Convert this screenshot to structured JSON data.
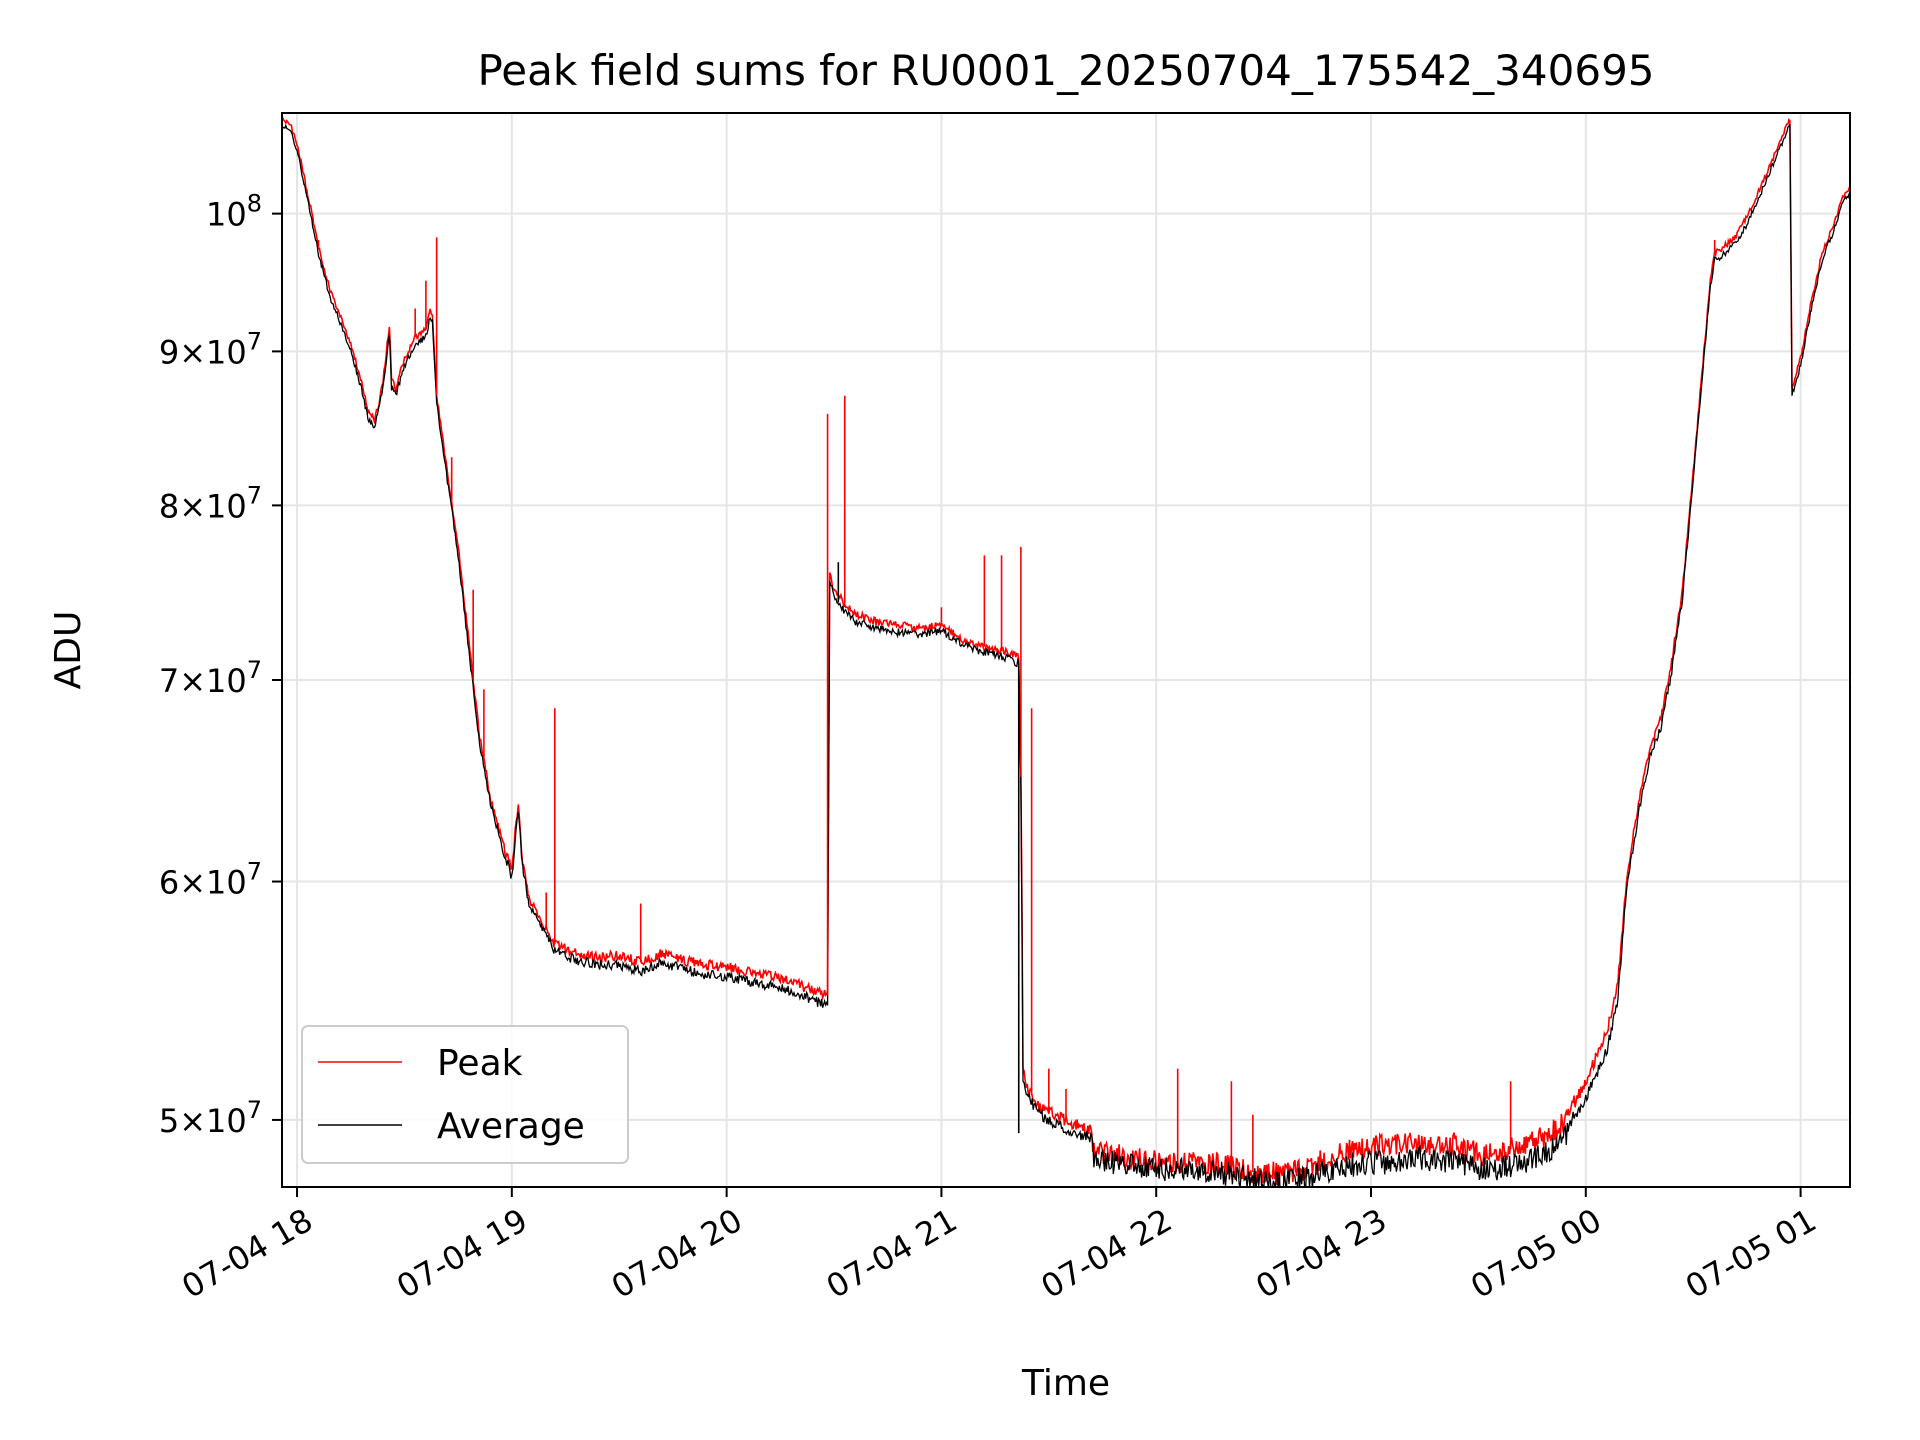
{
  "chart_data": {
    "type": "line",
    "title": "Peak field sums for RU0001_20250704_175542_340695",
    "xlabel": "Time",
    "ylabel": "ADU",
    "x_unit": "hours since 2025-07-04 00:00",
    "xlim": [
      17.93,
      25.23
    ],
    "ylim": [
      47500000,
      108000000
    ],
    "y_scale": "log",
    "grid": true,
    "legend_position": "lower left",
    "x_ticks": [
      {
        "value": 18,
        "label": "07-04 18"
      },
      {
        "value": 19,
        "label": "07-04 19"
      },
      {
        "value": 20,
        "label": "07-04 20"
      },
      {
        "value": 21,
        "label": "07-04 21"
      },
      {
        "value": 22,
        "label": "07-04 22"
      },
      {
        "value": 23,
        "label": "07-04 23"
      },
      {
        "value": 24,
        "label": "07-05 00"
      },
      {
        "value": 25,
        "label": "07-05 01"
      }
    ],
    "y_ticks": [
      {
        "value": 50000000,
        "mantissa": "5",
        "base": "10",
        "exponent": "7"
      },
      {
        "value": 60000000,
        "mantissa": "6",
        "base": "10",
        "exponent": "7"
      },
      {
        "value": 70000000,
        "mantissa": "7",
        "base": "10",
        "exponent": "7"
      },
      {
        "value": 80000000,
        "mantissa": "8",
        "base": "10",
        "exponent": "7"
      },
      {
        "value": 90000000,
        "mantissa": "9",
        "base": "10",
        "exponent": "7"
      },
      {
        "value": 100000000,
        "mantissa": "",
        "base": "10",
        "exponent": "8"
      }
    ],
    "series": [
      {
        "name": "Peak",
        "color": "#ff0000",
        "points": [
          [
            17.93,
            107.5
          ],
          [
            17.97,
            107.0
          ],
          [
            18.0,
            105.5
          ],
          [
            18.05,
            101.5
          ],
          [
            18.1,
            97.5
          ],
          [
            18.15,
            94.5
          ],
          [
            18.2,
            92.5
          ],
          [
            18.25,
            90.5
          ],
          [
            18.3,
            88.0
          ],
          [
            18.33,
            86.0
          ],
          [
            18.36,
            85.5
          ],
          [
            18.38,
            86.5
          ],
          [
            18.4,
            88.0
          ],
          [
            18.42,
            90.5
          ],
          [
            18.43,
            91.8
          ],
          [
            18.44,
            88.0
          ],
          [
            18.46,
            87.5
          ],
          [
            18.5,
            89.5
          ],
          [
            18.55,
            91.0
          ],
          [
            18.6,
            91.5
          ],
          [
            18.62,
            93.0
          ],
          [
            18.63,
            92.5
          ],
          [
            18.65,
            87.0
          ],
          [
            18.7,
            82.0
          ],
          [
            18.75,
            77.5
          ],
          [
            18.8,
            72.0
          ],
          [
            18.85,
            67.0
          ],
          [
            18.9,
            64.0
          ],
          [
            18.95,
            62.0
          ],
          [
            18.99,
            60.8
          ],
          [
            19.0,
            60.5
          ],
          [
            19.02,
            62.8
          ],
          [
            19.03,
            63.5
          ],
          [
            19.05,
            61.0
          ],
          [
            19.08,
            59.2
          ],
          [
            19.12,
            58.5
          ],
          [
            19.15,
            58.0
          ],
          [
            19.2,
            57.2
          ],
          [
            19.3,
            56.8
          ],
          [
            19.4,
            56.6
          ],
          [
            19.5,
            56.7
          ],
          [
            19.6,
            56.4
          ],
          [
            19.7,
            56.8
          ],
          [
            19.8,
            56.5
          ],
          [
            19.9,
            56.3
          ],
          [
            20.0,
            56.2
          ],
          [
            20.1,
            56.0
          ],
          [
            20.2,
            55.8
          ],
          [
            20.3,
            55.6
          ],
          [
            20.4,
            55.2
          ],
          [
            20.47,
            55.0
          ],
          [
            20.48,
            76.0
          ],
          [
            20.5,
            75.0
          ],
          [
            20.55,
            74.2
          ],
          [
            20.6,
            73.6
          ],
          [
            20.7,
            73.2
          ],
          [
            20.8,
            73.0
          ],
          [
            20.9,
            72.8
          ],
          [
            21.0,
            73.0
          ],
          [
            21.05,
            72.6
          ],
          [
            21.1,
            72.2
          ],
          [
            21.2,
            71.8
          ],
          [
            21.3,
            71.5
          ],
          [
            21.36,
            71.2
          ],
          [
            21.37,
            65.0
          ],
          [
            21.38,
            52.0
          ],
          [
            21.4,
            51.2
          ],
          [
            21.45,
            50.6
          ],
          [
            21.5,
            50.3
          ],
          [
            21.6,
            49.9
          ],
          [
            21.7,
            49.6
          ],
          [
            21.71,
            48.8
          ],
          [
            21.8,
            48.7
          ],
          [
            21.9,
            48.6
          ],
          [
            22.0,
            48.4
          ],
          [
            22.1,
            48.4
          ],
          [
            22.2,
            48.3
          ],
          [
            22.3,
            48.3
          ],
          [
            22.4,
            48.1
          ],
          [
            22.5,
            48.0
          ],
          [
            22.6,
            48.0
          ],
          [
            22.7,
            48.1
          ],
          [
            22.8,
            48.6
          ],
          [
            22.9,
            48.8
          ],
          [
            23.0,
            49.0
          ],
          [
            23.1,
            49.0
          ],
          [
            23.2,
            49.2
          ],
          [
            23.3,
            49.0
          ],
          [
            23.4,
            49.1
          ],
          [
            23.5,
            48.7
          ],
          [
            23.6,
            48.8
          ],
          [
            23.7,
            49.0
          ],
          [
            23.8,
            49.3
          ],
          [
            23.9,
            49.9
          ],
          [
            24.0,
            51.5
          ],
          [
            24.1,
            53.5
          ],
          [
            24.15,
            55.5
          ],
          [
            24.18,
            59.0
          ],
          [
            24.2,
            60.8
          ],
          [
            24.25,
            64.0
          ],
          [
            24.3,
            66.5
          ],
          [
            24.35,
            68.0
          ],
          [
            24.4,
            71.0
          ],
          [
            24.45,
            75.0
          ],
          [
            24.5,
            82.0
          ],
          [
            24.55,
            90.0
          ],
          [
            24.58,
            95.0
          ],
          [
            24.6,
            97.0
          ],
          [
            24.65,
            97.6
          ],
          [
            24.7,
            98.3
          ],
          [
            24.75,
            99.8
          ],
          [
            24.8,
            101.5
          ],
          [
            24.85,
            103.5
          ],
          [
            24.9,
            105.5
          ],
          [
            24.95,
            107.5
          ],
          [
            24.96,
            87.5
          ],
          [
            25.0,
            89.5
          ],
          [
            25.05,
            93.5
          ],
          [
            25.1,
            97.0
          ],
          [
            25.15,
            99.0
          ],
          [
            25.2,
            101.5
          ],
          [
            25.23,
            102.0
          ]
        ]
      },
      {
        "name": "Average",
        "color": "#000000",
        "points": [
          [
            17.93,
            107.0
          ],
          [
            17.97,
            106.5
          ],
          [
            18.0,
            105.0
          ],
          [
            18.05,
            101.0
          ],
          [
            18.1,
            97.0
          ],
          [
            18.15,
            94.0
          ],
          [
            18.2,
            92.0
          ],
          [
            18.25,
            90.0
          ],
          [
            18.3,
            87.5
          ],
          [
            18.33,
            85.5
          ],
          [
            18.36,
            85.0
          ],
          [
            18.38,
            86.0
          ],
          [
            18.4,
            87.5
          ],
          [
            18.42,
            90.0
          ],
          [
            18.43,
            91.3
          ],
          [
            18.44,
            87.5
          ],
          [
            18.46,
            87.0
          ],
          [
            18.5,
            89.0
          ],
          [
            18.55,
            90.5
          ],
          [
            18.6,
            91.0
          ],
          [
            18.62,
            92.5
          ],
          [
            18.63,
            92.0
          ],
          [
            18.65,
            86.5
          ],
          [
            18.7,
            81.5
          ],
          [
            18.75,
            77.0
          ],
          [
            18.8,
            71.5
          ],
          [
            18.85,
            66.7
          ],
          [
            18.9,
            63.8
          ],
          [
            18.95,
            61.8
          ],
          [
            18.99,
            60.5
          ],
          [
            19.0,
            60.2
          ],
          [
            19.02,
            62.5
          ],
          [
            19.03,
            63.2
          ],
          [
            19.05,
            60.7
          ],
          [
            19.08,
            59.0
          ],
          [
            19.12,
            58.2
          ],
          [
            19.15,
            57.7
          ],
          [
            19.2,
            56.9
          ],
          [
            19.3,
            56.5
          ],
          [
            19.4,
            56.3
          ],
          [
            19.5,
            56.3
          ],
          [
            19.6,
            56.0
          ],
          [
            19.7,
            56.4
          ],
          [
            19.8,
            56.1
          ],
          [
            19.9,
            55.9
          ],
          [
            20.0,
            55.8
          ],
          [
            20.1,
            55.6
          ],
          [
            20.2,
            55.4
          ],
          [
            20.3,
            55.2
          ],
          [
            20.4,
            54.8
          ],
          [
            20.47,
            54.6
          ],
          [
            20.48,
            75.5
          ],
          [
            20.5,
            74.6
          ],
          [
            20.55,
            73.8
          ],
          [
            20.6,
            73.2
          ],
          [
            20.7,
            72.8
          ],
          [
            20.8,
            72.6
          ],
          [
            20.9,
            72.5
          ],
          [
            21.0,
            72.7
          ],
          [
            21.05,
            72.3
          ],
          [
            21.1,
            71.9
          ],
          [
            21.2,
            71.5
          ],
          [
            21.3,
            71.2
          ],
          [
            21.36,
            70.9
          ],
          [
            21.37,
            64.5
          ],
          [
            21.38,
            51.5
          ],
          [
            21.4,
            50.9
          ],
          [
            21.45,
            50.3
          ],
          [
            21.5,
            50.0
          ],
          [
            21.6,
            49.6
          ],
          [
            21.7,
            49.3
          ],
          [
            21.71,
            48.5
          ],
          [
            21.8,
            48.4
          ],
          [
            21.9,
            48.3
          ],
          [
            22.0,
            48.2
          ],
          [
            22.1,
            48.1
          ],
          [
            22.2,
            48.1
          ],
          [
            22.3,
            48.0
          ],
          [
            22.4,
            47.9
          ],
          [
            22.5,
            47.7
          ],
          [
            22.6,
            47.7
          ],
          [
            22.7,
            47.8
          ],
          [
            22.8,
            48.1
          ],
          [
            22.9,
            48.3
          ],
          [
            23.0,
            48.4
          ],
          [
            23.1,
            48.4
          ],
          [
            23.2,
            48.6
          ],
          [
            23.3,
            48.4
          ],
          [
            23.4,
            48.5
          ],
          [
            23.5,
            48.1
          ],
          [
            23.6,
            48.2
          ],
          [
            23.7,
            48.4
          ],
          [
            23.8,
            48.7
          ],
          [
            23.9,
            49.3
          ],
          [
            24.0,
            50.8
          ],
          [
            24.1,
            52.8
          ],
          [
            24.15,
            54.8
          ],
          [
            24.18,
            58.5
          ],
          [
            24.2,
            60.3
          ],
          [
            24.25,
            63.5
          ],
          [
            24.3,
            66.0
          ],
          [
            24.35,
            67.5
          ],
          [
            24.4,
            70.5
          ],
          [
            24.45,
            74.5
          ],
          [
            24.5,
            81.5
          ],
          [
            24.55,
            89.5
          ],
          [
            24.58,
            94.5
          ],
          [
            24.6,
            96.5
          ],
          [
            24.65,
            97.0
          ],
          [
            24.7,
            97.8
          ],
          [
            24.75,
            99.2
          ],
          [
            24.8,
            101.0
          ],
          [
            24.85,
            103.0
          ],
          [
            24.9,
            105.0
          ],
          [
            24.95,
            107.0
          ],
          [
            24.96,
            87.0
          ],
          [
            25.0,
            89.0
          ],
          [
            25.05,
            93.0
          ],
          [
            25.1,
            96.5
          ],
          [
            25.15,
            98.5
          ],
          [
            25.2,
            101.0
          ],
          [
            25.23,
            101.5
          ]
        ]
      }
    ],
    "spikes": {
      "Peak": [
        [
          18.1,
          98.0
        ],
        [
          18.55,
          93.0
        ],
        [
          18.6,
          95.0
        ],
        [
          18.65,
          98.2
        ],
        [
          18.72,
          83.0
        ],
        [
          18.82,
          75.0
        ],
        [
          18.87,
          69.5
        ],
        [
          19.16,
          59.5
        ],
        [
          19.2,
          68.5
        ],
        [
          19.6,
          59.0
        ],
        [
          20.47,
          85.8
        ],
        [
          20.55,
          87.0
        ],
        [
          21.0,
          74.0
        ],
        [
          21.2,
          77.0
        ],
        [
          21.28,
          77.0
        ],
        [
          21.37,
          77.5
        ],
        [
          21.42,
          68.5
        ],
        [
          21.5,
          52.0
        ],
        [
          21.58,
          51.2
        ],
        [
          22.1,
          52.0
        ],
        [
          22.35,
          51.5
        ],
        [
          22.45,
          50.2
        ],
        [
          23.65,
          51.5
        ],
        [
          24.6,
          98.0
        ]
      ],
      "Average": [
        [
          20.52,
          76.6
        ],
        [
          21.36,
          49.5
        ]
      ]
    },
    "units_scale": 1000000
  }
}
